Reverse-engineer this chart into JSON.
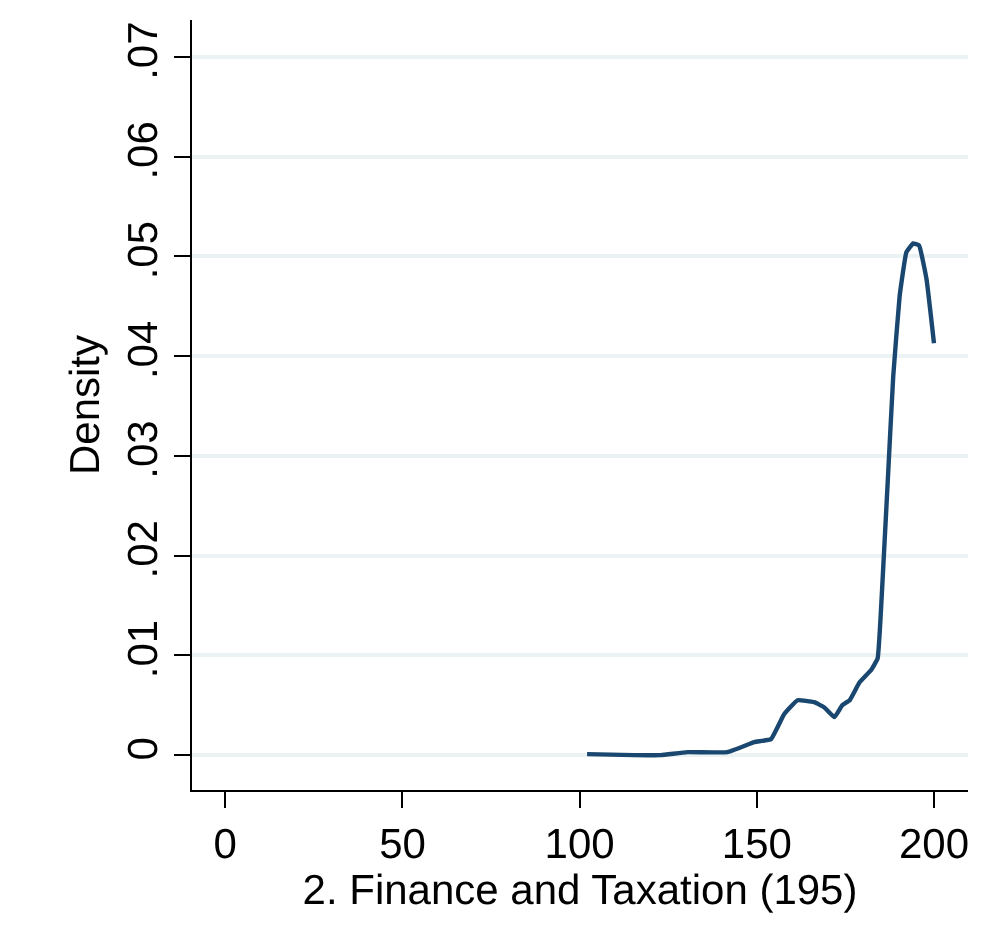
{
  "chart_data": {
    "type": "line",
    "xlabel": "2. Finance and Taxation (195)",
    "ylabel": "Density",
    "x": [
      102.1,
      115.3,
      122.9,
      130.4,
      141.7,
      149.3,
      154,
      157.7,
      161.5,
      166.2,
      169,
      171.9,
      174.1,
      176.2,
      179,
      182.2,
      184.1,
      185.5,
      187,
      188.5,
      190.3,
      192.2,
      194.1,
      195.8,
      197.9,
      200
    ],
    "series": [
      {
        "color": "#1a476f",
        "values": [
          0.0001,
          0,
          0,
          0.0003,
          0.0003,
          0.0013,
          0.0016,
          0.0041,
          0.0055,
          0.0053,
          0.0048,
          0.0038,
          0.005,
          0.0055,
          0.0073,
          0.0085,
          0.0097,
          0.0176,
          0.0278,
          0.038,
          0.046,
          0.0504,
          0.0513,
          0.0511,
          0.0477,
          0.0413
        ]
      }
    ],
    "xlim": [
      -9.4,
      209.6
    ],
    "ylim": [
      -0.0035,
      0.0737
    ],
    "xticks": [
      0,
      50,
      100,
      150,
      200
    ],
    "yticks": [
      {
        "value": 0,
        "label": "0"
      },
      {
        "value": 0.01,
        "label": ".01"
      },
      {
        "value": 0.02,
        "label": ".02"
      },
      {
        "value": 0.03,
        "label": ".03"
      },
      {
        "value": 0.04,
        "label": ".04"
      },
      {
        "value": 0.05,
        "label": ".05"
      },
      {
        "value": 0.06,
        "label": ".06"
      },
      {
        "value": 0.07,
        "label": ".07"
      }
    ],
    "grid": "y",
    "legend": false,
    "marker": "none",
    "line_style": "solid"
  }
}
